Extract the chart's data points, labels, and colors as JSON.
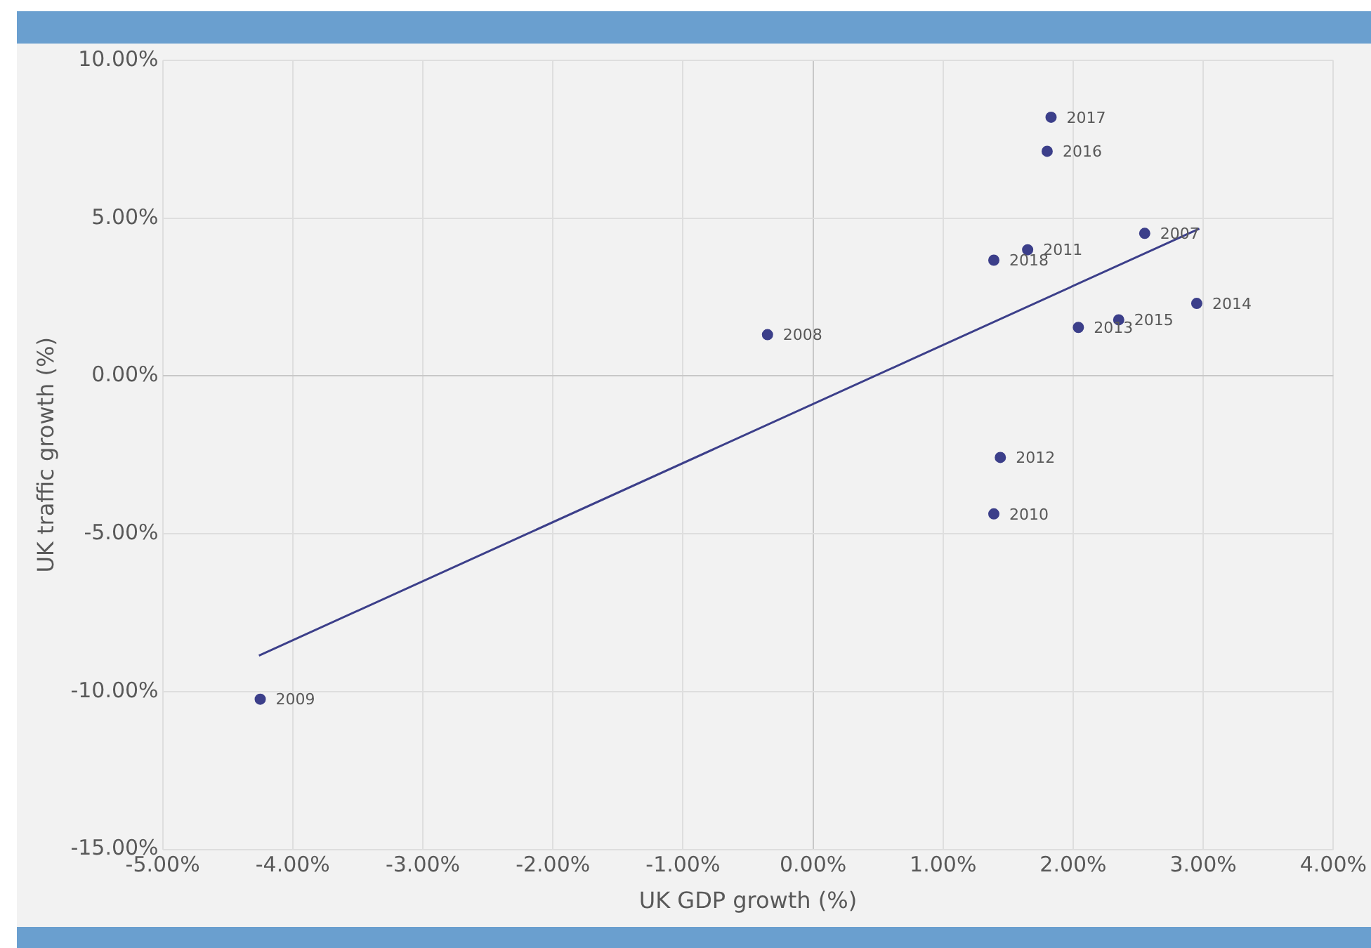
{
  "chart_data": {
    "type": "scatter",
    "xlabel": "UK GDP growth (%)",
    "ylabel": "UK traffic growth (%)",
    "xlim": [
      -5,
      4
    ],
    "ylim": [
      -15,
      10
    ],
    "xticks": [
      {
        "value": -5,
        "label": "-5.00%"
      },
      {
        "value": -4,
        "label": "-4.00%"
      },
      {
        "value": -3,
        "label": "-3.00%"
      },
      {
        "value": -2,
        "label": "-2.00%"
      },
      {
        "value": -1,
        "label": "-1.00%"
      },
      {
        "value": 0,
        "label": "0.00%"
      },
      {
        "value": 1,
        "label": "1.00%"
      },
      {
        "value": 2,
        "label": "2.00%"
      },
      {
        "value": 3,
        "label": "3.00%"
      },
      {
        "value": 4,
        "label": "4.00%"
      }
    ],
    "yticks": [
      {
        "value": -15,
        "label": "-15.00%"
      },
      {
        "value": -10,
        "label": "-10.00%"
      },
      {
        "value": -5,
        "label": "-5.00%"
      },
      {
        "value": 0,
        "label": "0.00%"
      },
      {
        "value": 5,
        "label": "5.00%"
      },
      {
        "value": 10,
        "label": "10.00%"
      }
    ],
    "grid": true,
    "legend": false,
    "series": [
      {
        "marker": "circle",
        "color": "#3c3f8a",
        "x": [
          2.55,
          -0.35,
          -4.25,
          1.39,
          1.65,
          1.44,
          2.04,
          2.95,
          2.35,
          1.8,
          1.83,
          1.39
        ],
        "values": [
          4.52,
          1.31,
          -10.24,
          -4.37,
          4.0,
          -2.58,
          1.54,
          2.3,
          1.78,
          7.12,
          8.2,
          3.67
        ]
      },
      {
        "type": "line",
        "color": "#3c3f8a",
        "x": [
          -4.26,
          2.97
        ],
        "values": [
          -8.86,
          4.67
        ]
      }
    ],
    "annotations": [
      {
        "text": "2007",
        "x": 2.55,
        "y": 4.52
      },
      {
        "text": "2008",
        "x": -0.35,
        "y": 1.31
      },
      {
        "text": "2009",
        "x": -4.25,
        "y": -10.24
      },
      {
        "text": "2010",
        "x": 1.39,
        "y": -4.37
      },
      {
        "text": "2011",
        "x": 1.65,
        "y": 4.0
      },
      {
        "text": "2012",
        "x": 1.44,
        "y": -2.58
      },
      {
        "text": "2013",
        "x": 2.04,
        "y": 1.54
      },
      {
        "text": "2014",
        "x": 2.95,
        "y": 2.3
      },
      {
        "text": "2015",
        "x": 2.35,
        "y": 1.78
      },
      {
        "text": "2016",
        "x": 1.8,
        "y": 7.12
      },
      {
        "text": "2017",
        "x": 1.83,
        "y": 8.2
      },
      {
        "text": "2018",
        "x": 1.39,
        "y": 3.67
      }
    ]
  }
}
